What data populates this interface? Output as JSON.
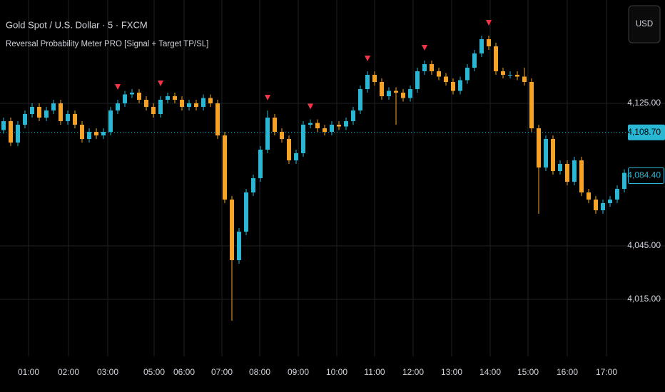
{
  "chart_data": {
    "type": "candlestick",
    "title": "Gold Spot / U.S. Dollar · 5 · FXCM",
    "subtitle": "Reversal Probability Meter PRO [Signal + Target TP/SL]",
    "currency": "USD",
    "up_color": "#2ab7d3",
    "down_color": "#f5a328",
    "signal_color": "#f23645",
    "grid": true,
    "xlim": [
      -0.5,
      87.5
    ],
    "xticks": [
      {
        "value": 3.5,
        "label": "01:00"
      },
      {
        "value": 9.1,
        "label": "02:00"
      },
      {
        "value": 14.6,
        "label": "03:00"
      },
      {
        "value": 21.1,
        "label": "05:00"
      },
      {
        "value": 25.3,
        "label": "06:00"
      },
      {
        "value": 30.6,
        "label": "07:00"
      },
      {
        "value": 35.9,
        "label": "08:00"
      },
      {
        "value": 41.3,
        "label": "09:00"
      },
      {
        "value": 46.7,
        "label": "10:00"
      },
      {
        "value": 52,
        "label": "11:00"
      },
      {
        "value": 57.4,
        "label": "12:00"
      },
      {
        "value": 62.8,
        "label": "13:00"
      },
      {
        "value": 68.2,
        "label": "14:00"
      },
      {
        "value": 73.5,
        "label": "15:00"
      },
      {
        "value": 79,
        "label": "16:00"
      },
      {
        "value": 84.5,
        "label": "17:00"
      }
    ],
    "ylim": [
      3983,
      4183
    ],
    "yticks": [
      {
        "value": 4015,
        "label": "4,015.00"
      },
      {
        "value": 4045,
        "label": "4,045.00"
      },
      {
        "value": 4125,
        "label": "4,125.00"
      }
    ],
    "price_labels": [
      {
        "value": 4108.7,
        "label": "4,108.70"
      },
      {
        "value": 4084.4,
        "label": "4,084.40"
      }
    ],
    "signals": [
      16,
      22,
      37,
      43,
      51,
      59,
      68
    ],
    "open": [
      4110,
      4115,
      4103,
      4113,
      4119,
      4123,
      4117,
      4121,
      4125,
      4115,
      4119,
      4113,
      4105,
      4109,
      4107,
      4109,
      4121,
      4125,
      4130,
      4131,
      4127,
      4123,
      4119,
      4127,
      4129,
      4127,
      4123,
      4125,
      4123,
      4128,
      4125,
      4107,
      4071,
      4037,
      4053,
      4075,
      4083,
      4099,
      4117,
      4109,
      4105,
      4093,
      4097,
      4113,
      4114,
      4111,
      4109,
      4113,
      4112,
      4115,
      4121,
      4133,
      4141,
      4137,
      4129,
      4132,
      4131,
      4128,
      4133,
      4143,
      4147,
      4143,
      4140,
      4137,
      4132,
      4138,
      4145,
      4153,
      4161,
      4157,
      4143,
      4141,
      4141,
      4140,
      4137,
      4111,
      4089,
      4105,
      4087,
      4091,
      4081,
      4093,
      4075,
      4071,
      4065,
      4069,
      4071,
      4077
    ],
    "high": [
      4117,
      4117,
      4115,
      4121,
      4125,
      4125,
      4123,
      4127,
      4127,
      4121,
      4121,
      4115,
      4111,
      4111,
      4111,
      4123,
      4127,
      4132,
      4133,
      4133,
      4129,
      4125,
      4129,
      4131,
      4131,
      4129,
      4127,
      4127,
      4130,
      4130,
      4127,
      4109,
      4073,
      4055,
      4077,
      4085,
      4101,
      4121,
      4119,
      4111,
      4107,
      4099,
      4115,
      4116,
      4116,
      4113,
      4115,
      4115,
      4117,
      4123,
      4135,
      4143,
      4143,
      4139,
      4134,
      4134,
      4133,
      4135,
      4145,
      4149,
      4149,
      4145,
      4142,
      4139,
      4140,
      4147,
      4155,
      4163,
      4163,
      4159,
      4145,
      4143,
      4143,
      4145,
      4139,
      4113,
      4107,
      4107,
      4093,
      4093,
      4095,
      4095,
      4077,
      4073,
      4071,
      4073,
      4079,
      4088
    ],
    "low": [
      4108,
      4101,
      4101,
      4111,
      4117,
      4115,
      4115,
      4119,
      4113,
      4113,
      4111,
      4103,
      4103,
      4105,
      4105,
      4107,
      4119,
      4123,
      4128,
      4125,
      4121,
      4117,
      4117,
      4125,
      4125,
      4121,
      4121,
      4121,
      4121,
      4123,
      4105,
      4069,
      4003,
      4035,
      4051,
      4073,
      4081,
      4097,
      4107,
      4103,
      4091,
      4091,
      4095,
      4111,
      4109,
      4107,
      4107,
      4110,
      4110,
      4113,
      4119,
      4131,
      4135,
      4127,
      4127,
      4113,
      4126,
      4126,
      4131,
      4141,
      4141,
      4138,
      4135,
      4130,
      4130,
      4136,
      4143,
      4151,
      4155,
      4141,
      4139,
      4139,
      4138,
      4135,
      4109,
      4063,
      4087,
      4085,
      4085,
      4079,
      4079,
      4073,
      4069,
      4063,
      4063,
      4067,
      4069,
      4075
    ],
    "close": [
      4115,
      4103,
      4113,
      4119,
      4123,
      4117,
      4121,
      4125,
      4115,
      4119,
      4113,
      4105,
      4109,
      4107,
      4109,
      4121,
      4125,
      4130,
      4131,
      4127,
      4123,
      4119,
      4127,
      4129,
      4127,
      4123,
      4125,
      4123,
      4128,
      4125,
      4107,
      4071,
      4037,
      4053,
      4075,
      4083,
      4099,
      4117,
      4109,
      4105,
      4093,
      4097,
      4113,
      4114,
      4111,
      4109,
      4113,
      4112,
      4115,
      4121,
      4133,
      4141,
      4137,
      4129,
      4132,
      4131,
      4128,
      4133,
      4143,
      4147,
      4143,
      4140,
      4137,
      4132,
      4138,
      4145,
      4153,
      4161,
      4157,
      4143,
      4141,
      4141,
      4140,
      4137,
      4111,
      4089,
      4105,
      4087,
      4091,
      4081,
      4093,
      4075,
      4071,
      4065,
      4069,
      4071,
      4077,
      4086
    ]
  }
}
